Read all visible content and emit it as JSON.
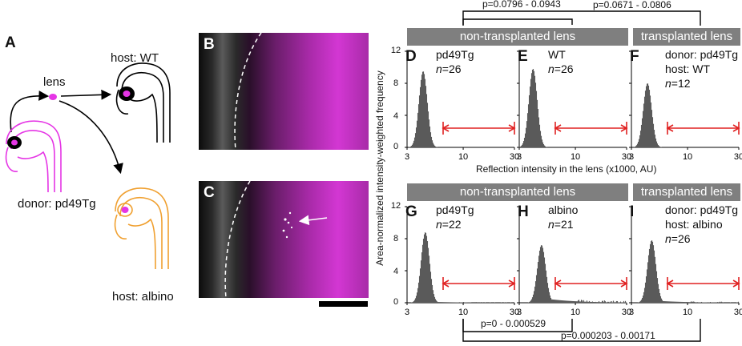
{
  "panels": {
    "A": "A",
    "B": "B",
    "C": "C",
    "D": "D",
    "E": "E",
    "F": "F",
    "G": "G",
    "H": "H",
    "I": "I"
  },
  "schematic": {
    "lens": "lens",
    "host_wt": "host: WT",
    "donor": "donor: pd49Tg",
    "host_albino": "host: albino"
  },
  "headers": {
    "non_transplanted": "non-transplanted lens",
    "transplanted": "transplanted lens"
  },
  "pvalues": {
    "top_inner": "p=0.0796 - 0.0943",
    "top_outer": "p=0.0671 - 0.0806",
    "bottom_inner": "p=0 - 0.000529",
    "bottom_outer": "p=0.000203 - 0.00171"
  },
  "axis": {
    "ylabel": "Area-normalized intensity-weighted frequency",
    "xlabel": "Reflection intensity in the lens (x1000, AU)",
    "y_ticks": [
      "12",
      "8",
      "4",
      "0"
    ],
    "x_ticks": [
      "3",
      "10",
      "30"
    ]
  },
  "hist_panels": [
    {
      "letter": "D",
      "line1": "pd49Tg",
      "line2": "n=26",
      "line3": ""
    },
    {
      "letter": "E",
      "line1": "WT",
      "line2": "n=26",
      "line3": ""
    },
    {
      "letter": "F",
      "line1": "donor: pd49Tg",
      "line2": "host:  WT",
      "line3": "n=12"
    },
    {
      "letter": "G",
      "line1": "pd49Tg",
      "line2": "n=22",
      "line3": ""
    },
    {
      "letter": "H",
      "line1": "albino",
      "line2": "n=21",
      "line3": ""
    },
    {
      "letter": "I",
      "line1": "donor: pd49Tg",
      "line2": "host: albino",
      "line3": "n=26"
    }
  ],
  "chart_data": [
    {
      "type": "area",
      "panel": "D",
      "x_scale": "log",
      "xlim": [
        3,
        30
      ],
      "ylim": [
        0,
        12
      ],
      "peak_x": 4.2,
      "peak_y": 9.5,
      "tail": "none"
    },
    {
      "type": "area",
      "panel": "E",
      "x_scale": "log",
      "xlim": [
        3,
        30
      ],
      "ylim": [
        0,
        12
      ],
      "peak_x": 4.0,
      "peak_y": 9.8,
      "tail": "none"
    },
    {
      "type": "area",
      "panel": "F",
      "x_scale": "log",
      "xlim": [
        3,
        30
      ],
      "ylim": [
        0,
        12
      ],
      "peak_x": 4.2,
      "peak_y": 8.0,
      "tail": "none"
    },
    {
      "type": "area",
      "panel": "G",
      "x_scale": "log",
      "xlim": [
        3,
        30
      ],
      "ylim": [
        0,
        12
      ],
      "peak_x": 4.4,
      "peak_y": 8.8,
      "tail": "small"
    },
    {
      "type": "area",
      "panel": "H",
      "x_scale": "log",
      "xlim": [
        3,
        30
      ],
      "ylim": [
        0,
        12
      ],
      "peak_x": 4.8,
      "peak_y": 7.2,
      "tail": "large"
    },
    {
      "type": "area",
      "panel": "I",
      "x_scale": "log",
      "xlim": [
        3,
        30
      ],
      "ylim": [
        0,
        12
      ],
      "peak_x": 4.6,
      "peak_y": 7.8,
      "tail": "medium"
    }
  ],
  "colors": {
    "magenta": "#e535e5",
    "orange": "#f0a030",
    "red_arrow": "#e02020",
    "bar_gray": "#7f7f7f",
    "hist_gray": "#5a5a5a"
  }
}
